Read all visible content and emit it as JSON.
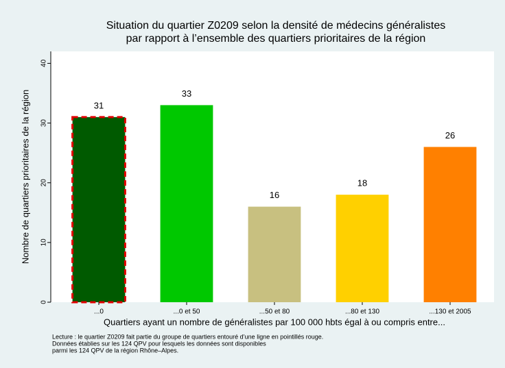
{
  "chart_data": {
    "type": "bar",
    "title": [
      "Situation du quartier Z0209 selon la densité de médecins généralistes",
      "par rapport à l’ensemble des quartiers prioritaires de la région"
    ],
    "ylabel": "Nombre de quartiers prioritaires de la région",
    "xlabel": "Quartiers ayant un nombre de généralistes par 100 000 hbts égal à ou compris entre...",
    "notes": [
      "Lecture : le quartier Z0209 fait partie du groupe de quartiers entouré d’une ligne en pointillés rouge.",
      "Données établies sur les 124 QPV pour lesquels les données sont disponibles",
      "parmi les 124 QPV de la région Rhône–Alpes."
    ],
    "categories": [
      "...0",
      "...0 et 50",
      "...50 et 80",
      "...80 et 130",
      "...130 et 2005"
    ],
    "values": [
      31,
      33,
      16,
      18,
      26
    ],
    "colors": [
      "#005a00",
      "#00c800",
      "#c8c080",
      "#ffd000",
      "#ff8000"
    ],
    "highlight_index": 0,
    "highlight_color": "#e00000",
    "ylim": [
      0,
      42
    ],
    "yticks": [
      0,
      10,
      20,
      30,
      40
    ],
    "grid": false
  }
}
